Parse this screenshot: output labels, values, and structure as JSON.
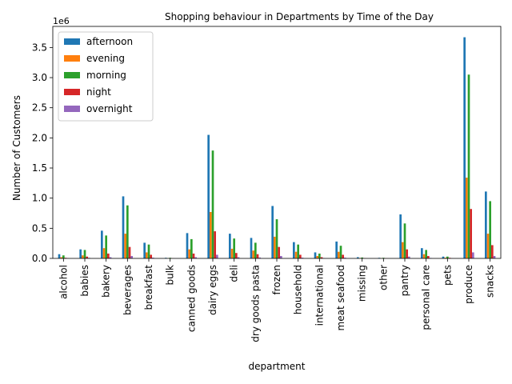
{
  "chart_data": {
    "type": "bar",
    "title": "Shopping behaviour in Departments by Time of the Day",
    "xlabel": "department",
    "ylabel": "Number of Customers",
    "y_offset_label": "1e6",
    "y_scale_factor": 1000000,
    "ylim": [
      0,
      3.85
    ],
    "yticks": [
      0.0,
      0.5,
      1.0,
      1.5,
      2.0,
      2.5,
      3.0,
      3.5
    ],
    "ytick_labels": [
      "0.0",
      "0.5",
      "1.0",
      "1.5",
      "2.0",
      "2.5",
      "3.0",
      "3.5"
    ],
    "grid": false,
    "legend_position": "top-left",
    "categories": [
      "alcohol",
      "babies",
      "bakery",
      "beverages",
      "breakfast",
      "bulk",
      "canned goods",
      "dairy eggs",
      "deli",
      "dry goods pasta",
      "frozen",
      "household",
      "international",
      "meat seafood",
      "missing",
      "other",
      "pantry",
      "personal care",
      "pets",
      "produce",
      "snacks"
    ],
    "series": [
      {
        "name": "afternoon",
        "color": "#1f77b4",
        "values": [
          0.07,
          0.15,
          0.46,
          1.03,
          0.26,
          0.01,
          0.42,
          2.05,
          0.41,
          0.34,
          0.87,
          0.27,
          0.1,
          0.28,
          0.02,
          0.01,
          0.73,
          0.17,
          0.03,
          3.67,
          1.11
        ]
      },
      {
        "name": "evening",
        "color": "#ff7f0e",
        "values": [
          0.02,
          0.05,
          0.17,
          0.41,
          0.1,
          0.003,
          0.15,
          0.77,
          0.16,
          0.13,
          0.36,
          0.11,
          0.04,
          0.11,
          0.006,
          0.004,
          0.27,
          0.07,
          0.012,
          1.34,
          0.41
        ]
      },
      {
        "name": "morning",
        "color": "#2ca02c",
        "values": [
          0.05,
          0.14,
          0.38,
          0.88,
          0.23,
          0.01,
          0.32,
          1.79,
          0.33,
          0.26,
          0.65,
          0.23,
          0.08,
          0.21,
          0.015,
          0.01,
          0.58,
          0.14,
          0.03,
          3.05,
          0.95
        ]
      },
      {
        "name": "night",
        "color": "#d62728",
        "values": [
          0.01,
          0.03,
          0.08,
          0.19,
          0.06,
          0.002,
          0.08,
          0.45,
          0.09,
          0.07,
          0.19,
          0.06,
          0.02,
          0.06,
          0.004,
          0.003,
          0.15,
          0.04,
          0.01,
          0.82,
          0.22
        ]
      },
      {
        "name": "overnight",
        "color": "#9467bd",
        "values": [
          0.004,
          0.01,
          0.02,
          0.04,
          0.012,
          0.001,
          0.02,
          0.06,
          0.02,
          0.015,
          0.04,
          0.012,
          0.005,
          0.012,
          0.001,
          0.001,
          0.03,
          0.008,
          0.002,
          0.1,
          0.04
        ]
      }
    ]
  }
}
